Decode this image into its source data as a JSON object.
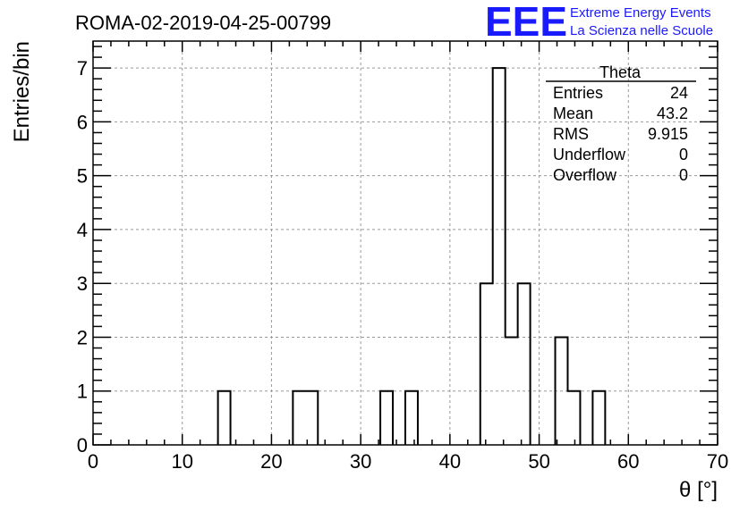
{
  "chart_data": {
    "type": "bar",
    "title": "ROMA-02-2019-04-25-00799",
    "xlabel": "θ [°]",
    "ylabel": "Entries/bin",
    "xlim": [
      0,
      70
    ],
    "ylim": [
      0,
      7.5
    ],
    "grid": true,
    "bin_width": 1.4,
    "x_ticks": [
      "0",
      "10",
      "20",
      "30",
      "40",
      "50",
      "60",
      "70"
    ],
    "y_ticks": [
      "0",
      "1",
      "2",
      "3",
      "4",
      "5",
      "6",
      "7"
    ],
    "bins": [
      {
        "x_low": 14.0,
        "value": 1
      },
      {
        "x_low": 22.4,
        "value": 1
      },
      {
        "x_low": 23.8,
        "value": 1
      },
      {
        "x_low": 32.2,
        "value": 1
      },
      {
        "x_low": 35.0,
        "value": 1
      },
      {
        "x_low": 43.4,
        "value": 3
      },
      {
        "x_low": 44.8,
        "value": 7
      },
      {
        "x_low": 46.2,
        "value": 2
      },
      {
        "x_low": 47.6,
        "value": 3
      },
      {
        "x_low": 51.8,
        "value": 2
      },
      {
        "x_low": 53.2,
        "value": 1
      },
      {
        "x_low": 56.0,
        "value": 1
      }
    ],
    "stats": {
      "name": "Theta",
      "rows": [
        {
          "label": "Entries",
          "value": "24"
        },
        {
          "label": "Mean",
          "value": "43.2"
        },
        {
          "label": "RMS",
          "value": "9.915"
        },
        {
          "label": "Underflow",
          "value": "0"
        },
        {
          "label": "Overflow",
          "value": "0"
        }
      ]
    }
  },
  "logo": {
    "mark": "EEE",
    "line1": "Extreme Energy Events",
    "line2": "La Scienza nelle Scuole",
    "color": "#1a1aff"
  }
}
